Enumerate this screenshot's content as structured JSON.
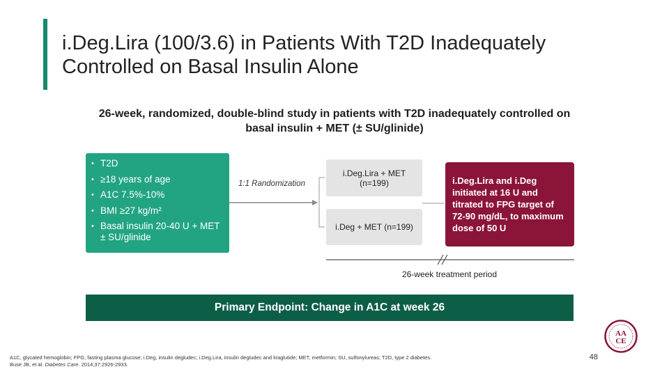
{
  "title": "i.Deg.Lira (100/3.6) in Patients With T2D Inadequately Controlled on Basal Insulin Alone",
  "subtitle": "26-week, randomized, double-blind study in patients with T2D inadequately controlled on basal insulin + MET (± SU/glinide)",
  "criteria": [
    "T2D",
    "≥18 years of age",
    "A1C 7.5%-10%",
    "BMI ≥27 kg/m²",
    "Basal insulin 20-40 U + MET ± SU/glinide"
  ],
  "randomization_label": "1:1 Randomization",
  "arms": [
    {
      "name": "i.Deg.Lira + MET",
      "n": "(n=199)"
    },
    {
      "name": "i.Deg + MET (n=199)"
    }
  ],
  "titration_text": "i.Deg.Lira and i.Deg initiated at 16 U and titrated to FPG target of 72-90 mg/dL, to maximum dose of 50 U",
  "period_label": "26-week treatment period",
  "endpoint": {
    "label": "Primary Endpoint:",
    "text": "Change in A1C at week 26"
  },
  "footnote": {
    "line1": "A1C, glycated hemoglobin; FPG, fasting plasma glucose; i.Deg, insulin degludec; i.Deg.Lira, insulin degludec and liraglutide; MET, metformin; SU, sulfonylureas; T2D, type 2 diabetes.",
    "ref_authors": "Buse JB, et al.",
    "ref_journal": "Diabetes Care",
    "ref_details": ". 2014;37:2926-2933."
  },
  "page_number": "48",
  "logo_text": "AACE",
  "colors": {
    "accent_green": "#22a482",
    "dark_green": "#0d5e47",
    "maroon": "#8b1538",
    "grey": "#e4e4e4"
  }
}
